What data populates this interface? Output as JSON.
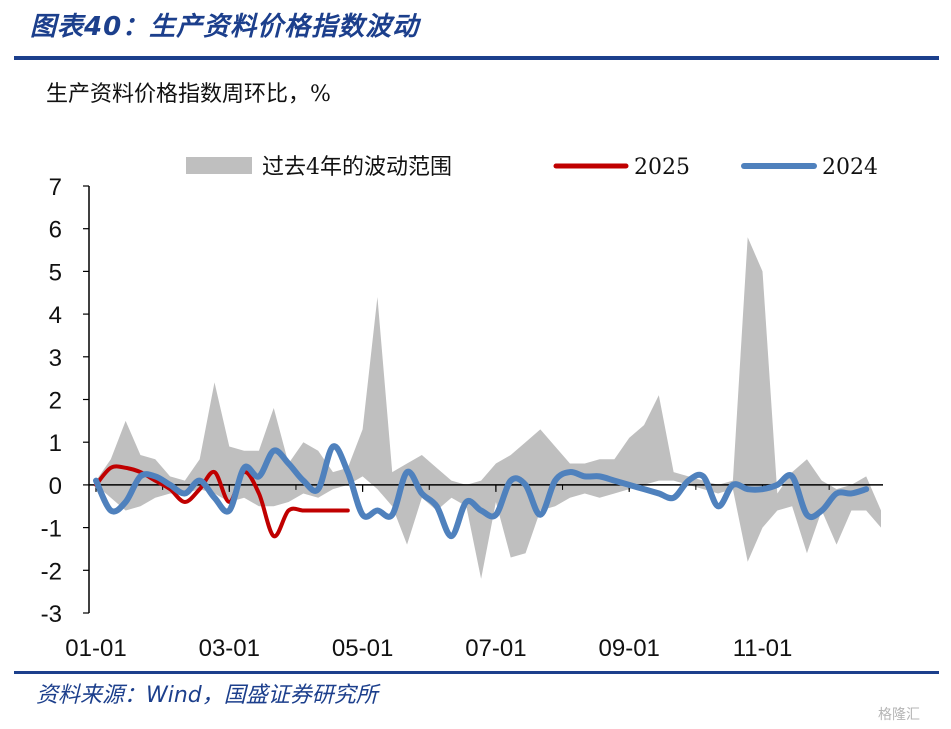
{
  "header": {
    "title": "图表40：生产资料价格指数波动"
  },
  "subtitle": "生产资料价格指数周环比，%",
  "source": "资料来源：Wind，国盛证券研究所",
  "watermark": "格隆汇",
  "colors": {
    "band": "#bfbfbf",
    "series_2025": "#c00000",
    "series_2024": "#4f81bd",
    "brand": "#1c3f8c"
  },
  "chart_data": {
    "type": "line",
    "title": "",
    "xlabel": "",
    "ylabel": "",
    "ylim": [
      -3,
      7
    ],
    "yticks": [
      7,
      6,
      5,
      4,
      3,
      2,
      1,
      0,
      -1,
      -2,
      -3
    ],
    "xlim": [
      0,
      53
    ],
    "xticks": [
      {
        "label": "01-01",
        "week": 0
      },
      {
        "label": "03-01",
        "week": 9
      },
      {
        "label": "05-01",
        "week": 18
      },
      {
        "label": "07-01",
        "week": 27
      },
      {
        "label": "09-01",
        "week": 36
      },
      {
        "label": "11-01",
        "week": 45
      }
    ],
    "legend": {
      "placement": "top",
      "entries": [
        {
          "label": "过去4年的波动范围",
          "key": "band"
        },
        {
          "label": "2025",
          "key": "series_2025"
        },
        {
          "label": "2024",
          "key": "series_2024"
        }
      ]
    },
    "band": {
      "name": "过去4年的波动范围",
      "x": [
        0,
        1,
        2,
        3,
        4,
        5,
        6,
        7,
        8,
        9,
        10,
        11,
        12,
        13,
        14,
        15,
        16,
        17,
        18,
        19,
        20,
        21,
        22,
        23,
        24,
        25,
        26,
        27,
        28,
        29,
        30,
        31,
        32,
        33,
        34,
        35,
        36,
        37,
        38,
        39,
        40,
        41,
        42,
        43,
        44,
        45,
        46,
        47,
        48,
        49,
        50,
        51,
        52,
        53
      ],
      "upper": [
        0.1,
        0.6,
        1.5,
        0.7,
        0.6,
        0.2,
        0.1,
        0.6,
        2.4,
        0.9,
        0.8,
        0.8,
        1.8,
        0.5,
        1.0,
        0.8,
        0.3,
        0.4,
        1.3,
        4.4,
        0.3,
        0.5,
        0.7,
        0.4,
        0.1,
        0.0,
        0.1,
        0.5,
        0.7,
        1.0,
        1.3,
        0.9,
        0.5,
        0.5,
        0.6,
        0.6,
        1.1,
        1.4,
        2.1,
        0.3,
        0.2,
        0.1,
        0.0,
        0.1,
        5.8,
        5.0,
        -0.2,
        0.3,
        0.6,
        0.1,
        -0.1,
        0.0,
        0.2,
        -0.6
      ],
      "lower": [
        0.0,
        -0.3,
        -0.6,
        -0.5,
        -0.3,
        -0.2,
        -0.2,
        -0.1,
        -0.2,
        -0.4,
        -0.3,
        -0.5,
        -0.5,
        -0.4,
        -0.2,
        -0.3,
        -0.1,
        0.0,
        0.2,
        -0.1,
        -0.5,
        -1.4,
        -0.3,
        -0.6,
        -0.3,
        -0.5,
        -2.2,
        -0.4,
        -1.7,
        -1.6,
        -0.6,
        -0.5,
        -0.3,
        -0.2,
        -0.3,
        -0.2,
        -0.1,
        0.0,
        0.1,
        0.1,
        0.0,
        -0.1,
        -0.2,
        -0.1,
        -1.8,
        -1.0,
        -0.6,
        -0.5,
        -1.6,
        -0.6,
        -1.4,
        -0.6,
        -0.6,
        -1.0
      ]
    },
    "series": [
      {
        "name": "2025",
        "x": [
          0,
          1,
          2,
          3,
          4,
          5,
          6,
          7,
          8,
          9,
          10,
          11,
          12,
          13,
          14,
          15,
          16,
          17
        ],
        "values": [
          0.0,
          0.4,
          0.4,
          0.3,
          0.1,
          -0.1,
          -0.4,
          -0.1,
          0.3,
          -0.4,
          0.3,
          -0.2,
          -1.2,
          -0.6,
          -0.6,
          -0.6,
          -0.6,
          -0.6
        ]
      },
      {
        "name": "2024",
        "x": [
          0,
          1,
          2,
          3,
          4,
          5,
          6,
          7,
          8,
          9,
          10,
          11,
          12,
          13,
          14,
          15,
          16,
          17,
          18,
          19,
          20,
          21,
          22,
          23,
          24,
          25,
          26,
          27,
          28,
          29,
          30,
          31,
          32,
          33,
          34,
          35,
          36,
          37,
          38,
          39,
          40,
          41,
          42,
          43,
          44,
          45,
          46,
          47,
          48,
          49,
          50,
          51,
          52
        ],
        "values": [
          0.1,
          -0.6,
          -0.4,
          0.2,
          0.2,
          0.0,
          -0.2,
          0.1,
          -0.3,
          -0.6,
          0.4,
          0.2,
          0.8,
          0.5,
          0.1,
          -0.1,
          0.9,
          0.3,
          -0.7,
          -0.6,
          -0.7,
          0.3,
          -0.2,
          -0.5,
          -1.2,
          -0.4,
          -0.6,
          -0.7,
          0.1,
          0.0,
          -0.7,
          0.1,
          0.3,
          0.2,
          0.2,
          0.1,
          0.0,
          -0.1,
          -0.2,
          -0.3,
          0.1,
          0.2,
          -0.5,
          0.0,
          -0.1,
          -0.1,
          0.0,
          0.2,
          -0.7,
          -0.6,
          -0.2,
          -0.2,
          -0.1
        ]
      }
    ]
  }
}
